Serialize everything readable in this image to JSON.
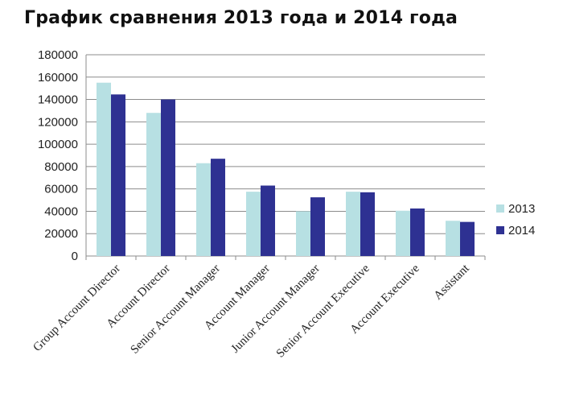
{
  "chart_data": {
    "type": "bar",
    "title": "График сравнения 2013 года и 2014 года",
    "categories": [
      "Group Account Director",
      "Account Director",
      "Senior Account Manager",
      "Account Manager",
      "Junior Account Manager",
      "Senior Account Executive",
      "Account Executive",
      "Assistant"
    ],
    "series": [
      {
        "name": "2013",
        "color": "#b7e0e3",
        "values": [
          155000,
          128000,
          83000,
          57500,
          40000,
          57500,
          40500,
          31500
        ]
      },
      {
        "name": "2014",
        "color": "#2e3192",
        "values": [
          144500,
          140000,
          87000,
          63000,
          52500,
          57000,
          42500,
          30500
        ]
      }
    ],
    "ylim": [
      0,
      180000
    ],
    "yticks": [
      0,
      20000,
      40000,
      60000,
      80000,
      100000,
      120000,
      140000,
      160000,
      180000
    ],
    "xlabel": "",
    "ylabel": "",
    "grid": true,
    "legend_position": "right"
  }
}
